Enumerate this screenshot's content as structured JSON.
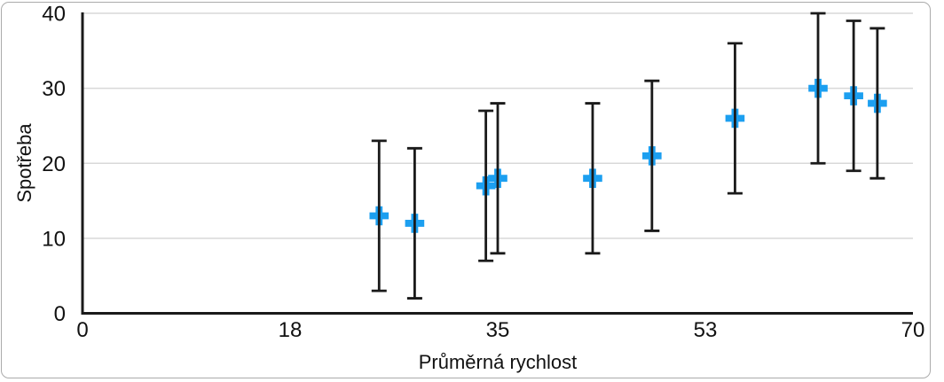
{
  "figure": {
    "background": "#ffffff",
    "frame_border_color": "#ababab"
  },
  "chart_data": {
    "type": "scatter",
    "title": "",
    "xlabel": "Průměrná rychlost",
    "ylabel": "Spotřeba",
    "xlim": [
      0,
      70
    ],
    "ylim": [
      0,
      40
    ],
    "grid": "horizontal",
    "legend": "none",
    "x_ticks": [
      {
        "value": 0,
        "label": "0"
      },
      {
        "value": 17.5,
        "label": "18"
      },
      {
        "value": 35,
        "label": "35"
      },
      {
        "value": 52.5,
        "label": "53"
      },
      {
        "value": 70,
        "label": "70"
      }
    ],
    "y_ticks": [
      {
        "value": 0,
        "label": "0"
      },
      {
        "value": 10,
        "label": "10"
      },
      {
        "value": 20,
        "label": "20"
      },
      {
        "value": 30,
        "label": "30"
      },
      {
        "value": 40,
        "label": "40"
      }
    ],
    "colors": {
      "marker_blue": "#1c9ff0",
      "error_bar": "#1a1a1a",
      "axis_line": "#1a1a1a",
      "gridline": "#d8d8d8",
      "tick_text": "#111111"
    },
    "series": [
      {
        "name": "Spotřeba",
        "marker": "plus",
        "marker_color": "#1c9ff0",
        "error_bar_color": "#1a1a1a",
        "points": [
          {
            "x": 25,
            "y": 13,
            "error_plus": 10,
            "error_minus": 10
          },
          {
            "x": 28,
            "y": 12,
            "error_plus": 10,
            "error_minus": 10
          },
          {
            "x": 34,
            "y": 17,
            "error_plus": 10,
            "error_minus": 10
          },
          {
            "x": 35,
            "y": 18,
            "error_plus": 10,
            "error_minus": 10
          },
          {
            "x": 43,
            "y": 18,
            "error_plus": 10,
            "error_minus": 10
          },
          {
            "x": 48,
            "y": 21,
            "error_plus": 10,
            "error_minus": 10
          },
          {
            "x": 55,
            "y": 26,
            "error_plus": 10,
            "error_minus": 10
          },
          {
            "x": 62,
            "y": 30,
            "error_plus": 10,
            "error_minus": 10
          },
          {
            "x": 65,
            "y": 29,
            "error_plus": 10,
            "error_minus": 10
          },
          {
            "x": 67,
            "y": 28,
            "error_plus": 10,
            "error_minus": 10
          }
        ]
      }
    ]
  }
}
